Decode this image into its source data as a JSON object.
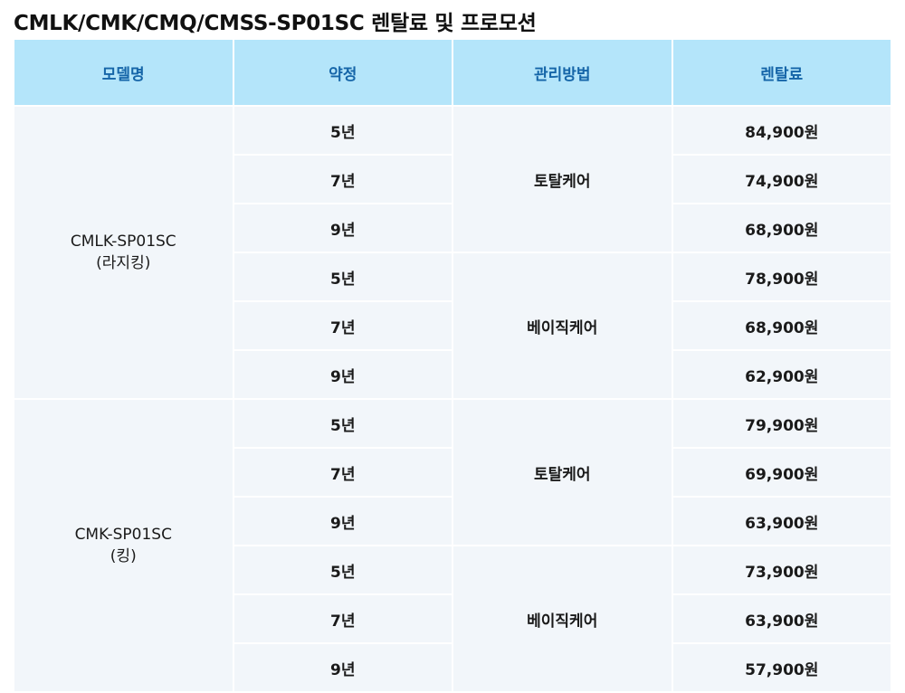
{
  "title": "CMLK/CMK/CMQ/CMSS-SP01SC 렌탈료 및 프로모션",
  "headers": [
    "모델명",
    "약정",
    "관리방법",
    "렌탈료"
  ],
  "models": [
    {
      "name": "CMLK-SP01SC",
      "sub": "(라지킹)",
      "plans": [
        {
          "care": "토탈케어",
          "rows": [
            {
              "term": "5년",
              "price": "84,900원"
            },
            {
              "term": "7년",
              "price": "74,900원"
            },
            {
              "term": "9년",
              "price": "68,900원"
            }
          ]
        },
        {
          "care": "베이직케어",
          "rows": [
            {
              "term": "5년",
              "price": "78,900원"
            },
            {
              "term": "7년",
              "price": "68,900원"
            },
            {
              "term": "9년",
              "price": "62,900원"
            }
          ]
        }
      ]
    },
    {
      "name": "CMK-SP01SC",
      "sub": "(킹)",
      "plans": [
        {
          "care": "토탈케어",
          "rows": [
            {
              "term": "5년",
              "price": "79,900원"
            },
            {
              "term": "7년",
              "price": "69,900원"
            },
            {
              "term": "9년",
              "price": "63,900원"
            }
          ]
        },
        {
          "care": "베이직케어",
          "rows": [
            {
              "term": "5년",
              "price": "73,900원"
            },
            {
              "term": "7년",
              "price": "63,900원"
            },
            {
              "term": "9년",
              "price": "57,900원"
            }
          ]
        }
      ]
    }
  ]
}
